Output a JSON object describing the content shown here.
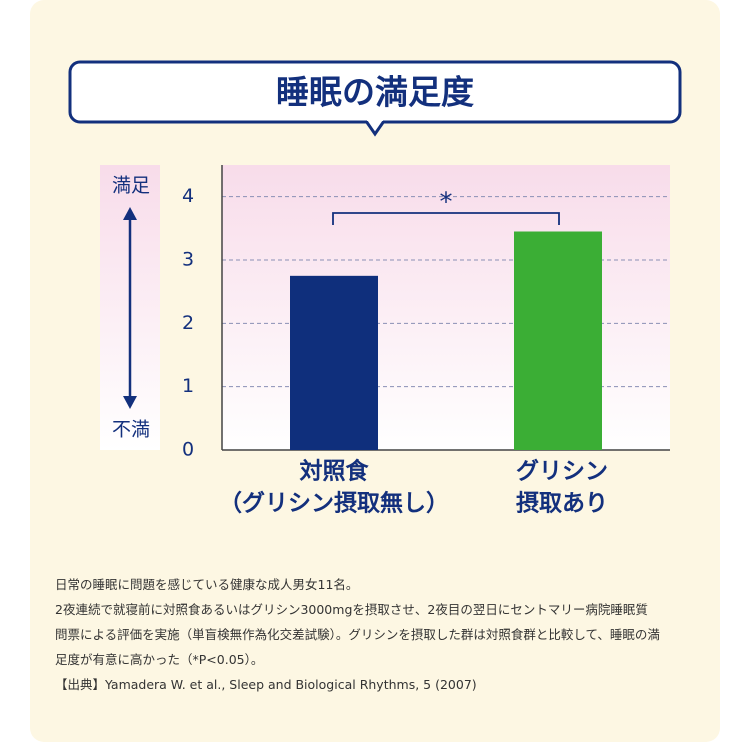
{
  "chart_data": {
    "type": "bar",
    "title": "睡眠の満足度",
    "categories": [
      [
        "対照食",
        "（グリシン摂取無し）"
      ],
      [
        "グリシン",
        "摂取あり"
      ]
    ],
    "values": [
      2.75,
      3.45
    ],
    "colors": [
      "#0f2f7c",
      "#3bae35"
    ],
    "ylim": [
      0,
      4.5
    ],
    "yticks": [
      0,
      1,
      2,
      3,
      4
    ],
    "grid": true,
    "y_label_top": "満足",
    "y_label_bottom": "不満",
    "annotation": "*"
  },
  "notes": [
    "日常の睡眠に問題を感じている健康な成人男女11名。",
    "2夜連続で就寝前に対照食あるいはグリシン3000mgを摂取させ、2夜目の翌日にセントマリー病院睡眠質",
    "問票による評価を実施（単盲検無作為化交差試験）。グリシンを摂取した群は対照食群と比較して、睡眠の満",
    "足度が有意に高かった（*P<0.05）。",
    "【出典】Yamadera W. et al., Sleep and Biological Rhythms, 5 (2007)"
  ]
}
